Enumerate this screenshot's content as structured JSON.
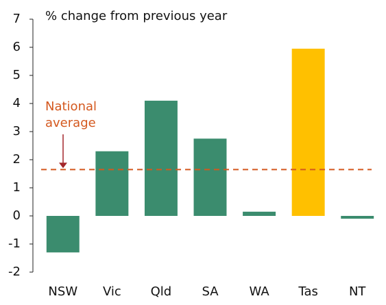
{
  "chart_data": {
    "type": "bar",
    "y_axis_label": "% change from previous year",
    "categories": [
      "NSW",
      "Vic",
      "Qld",
      "SA",
      "WA",
      "Tas",
      "NT"
    ],
    "values": [
      -1.3,
      2.3,
      4.1,
      2.75,
      0.15,
      5.95,
      -0.1
    ],
    "colors": [
      "#3b8c6e",
      "#3b8c6e",
      "#3b8c6e",
      "#3b8c6e",
      "#3b8c6e",
      "#ffc000",
      "#3b8c6e"
    ],
    "ylim": [
      -2,
      7
    ],
    "yticks": [
      -2,
      -1,
      0,
      1,
      2,
      3,
      4,
      5,
      6,
      7
    ],
    "grid": false,
    "reference_line": {
      "value": 1.65,
      "label": [
        "National",
        "average"
      ],
      "color": "#d4581e",
      "arrow_color": "#a3262a"
    }
  }
}
